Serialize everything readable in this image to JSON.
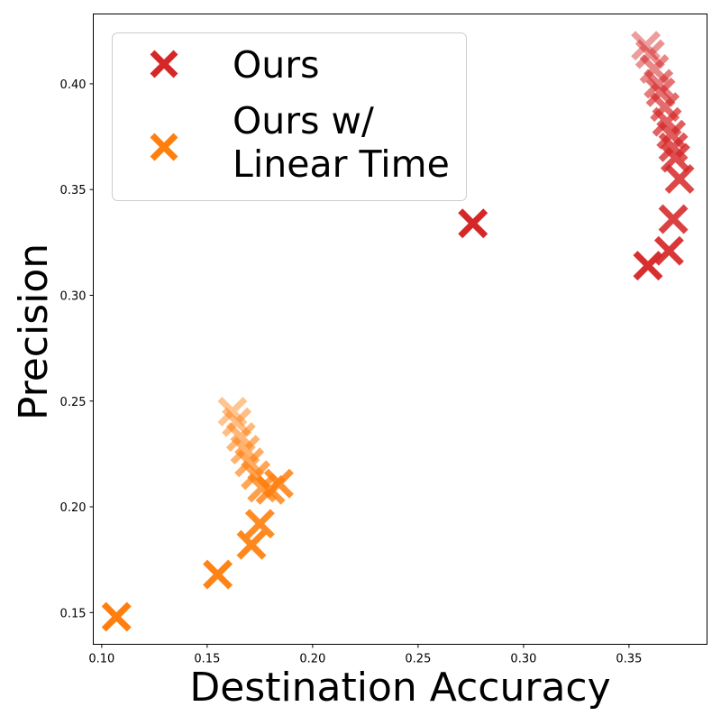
{
  "chart_data": {
    "type": "scatter",
    "title": "",
    "xlabel": "Destination Accuracy",
    "ylabel": "Precision",
    "xlim": [
      0.096,
      0.387
    ],
    "ylim": [
      0.135,
      0.433
    ],
    "x_ticks": [
      0.1,
      0.15,
      0.2,
      0.25,
      0.3,
      0.35
    ],
    "y_ticks": [
      0.15,
      0.2,
      0.25,
      0.3,
      0.35,
      0.4
    ],
    "grid": false,
    "legend_position": "top-left",
    "marker": "X",
    "series": [
      {
        "name": "Ours",
        "color": "#d62728",
        "points": [
          {
            "x": 0.358,
            "y": 0.418,
            "alpha": 0.45
          },
          {
            "x": 0.36,
            "y": 0.414,
            "alpha": 0.5
          },
          {
            "x": 0.362,
            "y": 0.407,
            "alpha": 0.55
          },
          {
            "x": 0.364,
            "y": 0.4,
            "alpha": 0.6
          },
          {
            "x": 0.365,
            "y": 0.396,
            "alpha": 0.65
          },
          {
            "x": 0.367,
            "y": 0.389,
            "alpha": 0.68
          },
          {
            "x": 0.368,
            "y": 0.382,
            "alpha": 0.72
          },
          {
            "x": 0.37,
            "y": 0.376,
            "alpha": 0.75
          },
          {
            "x": 0.371,
            "y": 0.37,
            "alpha": 0.78
          },
          {
            "x": 0.372,
            "y": 0.365,
            "alpha": 0.82
          },
          {
            "x": 0.374,
            "y": 0.355,
            "alpha": 0.85
          },
          {
            "x": 0.371,
            "y": 0.336,
            "alpha": 0.88
          },
          {
            "x": 0.369,
            "y": 0.321,
            "alpha": 0.92
          },
          {
            "x": 0.359,
            "y": 0.314,
            "alpha": 0.96
          },
          {
            "x": 0.276,
            "y": 0.334,
            "alpha": 1.0
          }
        ]
      },
      {
        "name": "Ours w/ Linear Time",
        "name_lines": [
          "Ours w/",
          "Linear Time"
        ],
        "color": "#ff7f0e",
        "points": [
          {
            "x": 0.162,
            "y": 0.245,
            "alpha": 0.45
          },
          {
            "x": 0.164,
            "y": 0.24,
            "alpha": 0.5
          },
          {
            "x": 0.166,
            "y": 0.233,
            "alpha": 0.55
          },
          {
            "x": 0.168,
            "y": 0.227,
            "alpha": 0.6
          },
          {
            "x": 0.17,
            "y": 0.221,
            "alpha": 0.65
          },
          {
            "x": 0.173,
            "y": 0.215,
            "alpha": 0.7
          },
          {
            "x": 0.176,
            "y": 0.209,
            "alpha": 0.75
          },
          {
            "x": 0.18,
            "y": 0.208,
            "alpha": 0.8
          },
          {
            "x": 0.184,
            "y": 0.211,
            "alpha": 0.85
          },
          {
            "x": 0.175,
            "y": 0.192,
            "alpha": 0.9
          },
          {
            "x": 0.171,
            "y": 0.182,
            "alpha": 0.93
          },
          {
            "x": 0.155,
            "y": 0.168,
            "alpha": 0.97
          },
          {
            "x": 0.107,
            "y": 0.148,
            "alpha": 1.0
          }
        ]
      }
    ]
  }
}
